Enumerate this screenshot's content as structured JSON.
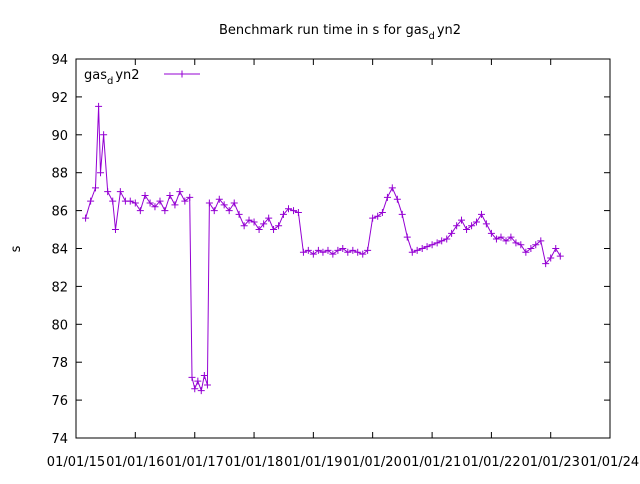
{
  "chart_data": {
    "type": "scatter",
    "title": "Benchmark run time in s for gas",
    "title_subscript": "d",
    "title_suffix": "yn2",
    "xlabel": "",
    "ylabel": "s",
    "xlim": [
      "2015-01-01",
      "2024-01-01"
    ],
    "ylim": [
      74,
      94
    ],
    "yticks": [
      74,
      76,
      78,
      80,
      82,
      84,
      86,
      88,
      90,
      92,
      94
    ],
    "xticks": [
      "01/01/15",
      "01/01/16",
      "01/01/17",
      "01/01/18",
      "01/01/19",
      "01/01/20",
      "01/01/21",
      "01/01/22",
      "01/01/23",
      "01/01/24"
    ],
    "grid": false,
    "legend": {
      "placement": "top-left",
      "label": "gas",
      "label_subscript": "d",
      "label_suffix": "yn2"
    },
    "series": [
      {
        "name": "gas_dyn2",
        "color": "#9400d3",
        "marker": "plus",
        "points": [
          [
            "2015-03-01",
            85.6
          ],
          [
            "2015-04-01",
            86.5
          ],
          [
            "2015-05-01",
            87.2
          ],
          [
            "2015-05-20",
            91.5
          ],
          [
            "2015-06-01",
            88.0
          ],
          [
            "2015-06-20",
            90.0
          ],
          [
            "2015-07-15",
            87.0
          ],
          [
            "2015-08-15",
            86.5
          ],
          [
            "2015-09-01",
            85.0
          ],
          [
            "2015-10-01",
            87.0
          ],
          [
            "2015-11-01",
            86.5
          ],
          [
            "2015-12-01",
            86.5
          ],
          [
            "2016-01-01",
            86.4
          ],
          [
            "2016-02-01",
            86.0
          ],
          [
            "2016-03-01",
            86.8
          ],
          [
            "2016-04-01",
            86.4
          ],
          [
            "2016-05-01",
            86.2
          ],
          [
            "2016-06-01",
            86.5
          ],
          [
            "2016-07-01",
            86.0
          ],
          [
            "2016-08-01",
            86.8
          ],
          [
            "2016-09-01",
            86.3
          ],
          [
            "2016-10-01",
            87.0
          ],
          [
            "2016-11-01",
            86.5
          ],
          [
            "2016-12-01",
            86.7
          ],
          [
            "2016-12-15",
            77.2
          ],
          [
            "2017-01-01",
            76.6
          ],
          [
            "2017-01-20",
            77.0
          ],
          [
            "2017-02-10",
            76.5
          ],
          [
            "2017-03-01",
            77.3
          ],
          [
            "2017-03-20",
            76.8
          ],
          [
            "2017-04-01",
            86.4
          ],
          [
            "2017-05-01",
            86.0
          ],
          [
            "2017-06-01",
            86.6
          ],
          [
            "2017-07-01",
            86.3
          ],
          [
            "2017-08-01",
            86.0
          ],
          [
            "2017-09-01",
            86.4
          ],
          [
            "2017-10-01",
            85.8
          ],
          [
            "2017-11-01",
            85.2
          ],
          [
            "2017-12-01",
            85.5
          ],
          [
            "2018-01-01",
            85.4
          ],
          [
            "2018-02-01",
            85.0
          ],
          [
            "2018-03-01",
            85.3
          ],
          [
            "2018-04-01",
            85.6
          ],
          [
            "2018-05-01",
            85.0
          ],
          [
            "2018-06-01",
            85.2
          ],
          [
            "2018-07-01",
            85.8
          ],
          [
            "2018-08-01",
            86.1
          ],
          [
            "2018-09-01",
            86.0
          ],
          [
            "2018-10-01",
            85.9
          ],
          [
            "2018-11-01",
            83.8
          ],
          [
            "2018-12-01",
            83.9
          ],
          [
            "2019-01-01",
            83.7
          ],
          [
            "2019-02-01",
            83.9
          ],
          [
            "2019-03-01",
            83.8
          ],
          [
            "2019-04-01",
            83.9
          ],
          [
            "2019-05-01",
            83.7
          ],
          [
            "2019-06-01",
            83.9
          ],
          [
            "2019-07-01",
            84.0
          ],
          [
            "2019-08-01",
            83.8
          ],
          [
            "2019-09-01",
            83.9
          ],
          [
            "2019-10-01",
            83.8
          ],
          [
            "2019-11-01",
            83.7
          ],
          [
            "2019-12-01",
            83.9
          ],
          [
            "2020-01-01",
            85.6
          ],
          [
            "2020-02-01",
            85.7
          ],
          [
            "2020-03-01",
            85.9
          ],
          [
            "2020-04-01",
            86.7
          ],
          [
            "2020-05-01",
            87.2
          ],
          [
            "2020-06-01",
            86.6
          ],
          [
            "2020-07-01",
            85.8
          ],
          [
            "2020-08-01",
            84.6
          ],
          [
            "2020-09-01",
            83.8
          ],
          [
            "2020-10-01",
            83.9
          ],
          [
            "2020-11-01",
            84.0
          ],
          [
            "2020-12-01",
            84.1
          ],
          [
            "2021-01-01",
            84.2
          ],
          [
            "2021-02-01",
            84.3
          ],
          [
            "2021-03-01",
            84.4
          ],
          [
            "2021-04-01",
            84.5
          ],
          [
            "2021-05-01",
            84.8
          ],
          [
            "2021-06-01",
            85.2
          ],
          [
            "2021-07-01",
            85.5
          ],
          [
            "2021-08-01",
            85.0
          ],
          [
            "2021-09-01",
            85.2
          ],
          [
            "2021-10-01",
            85.4
          ],
          [
            "2021-11-01",
            85.8
          ],
          [
            "2021-12-01",
            85.3
          ],
          [
            "2022-01-01",
            84.8
          ],
          [
            "2022-02-01",
            84.5
          ],
          [
            "2022-03-01",
            84.6
          ],
          [
            "2022-04-01",
            84.4
          ],
          [
            "2022-05-01",
            84.6
          ],
          [
            "2022-06-01",
            84.3
          ],
          [
            "2022-07-01",
            84.2
          ],
          [
            "2022-08-01",
            83.8
          ],
          [
            "2022-09-01",
            84.0
          ],
          [
            "2022-10-01",
            84.2
          ],
          [
            "2022-11-01",
            84.4
          ],
          [
            "2022-12-01",
            83.2
          ],
          [
            "2023-01-01",
            83.5
          ],
          [
            "2023-02-01",
            84.0
          ],
          [
            "2023-03-01",
            83.6
          ]
        ]
      }
    ]
  }
}
